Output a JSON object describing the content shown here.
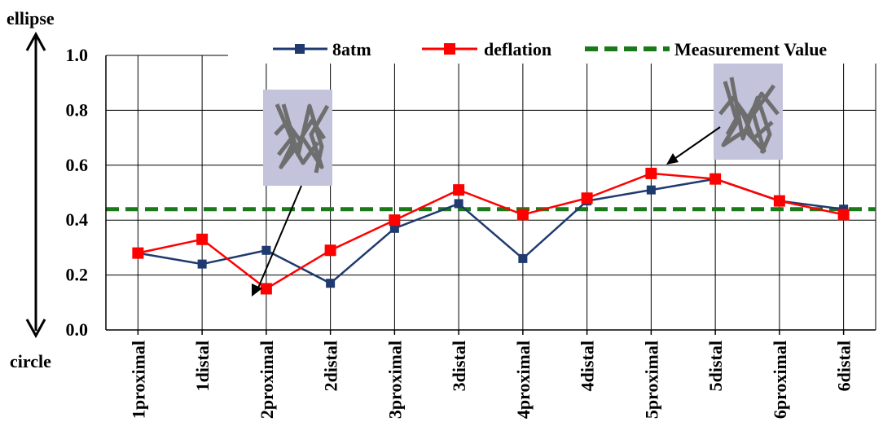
{
  "chart_data": {
    "type": "line",
    "categories": [
      "1proximal",
      "1distal",
      "2proximal",
      "2distal",
      "3proximal",
      "3distal",
      "4proximal",
      "4distal",
      "5proximal",
      "5distal",
      "6proximal",
      "6distal"
    ],
    "series": [
      {
        "name": "8atm",
        "values": [
          0.28,
          0.24,
          0.29,
          0.17,
          0.37,
          0.46,
          0.26,
          0.47,
          0.51,
          0.55,
          0.47,
          0.44
        ],
        "color": "#1f3a6e",
        "marker": "square"
      },
      {
        "name": "deflation",
        "values": [
          0.28,
          0.33,
          0.15,
          0.29,
          0.4,
          0.51,
          0.42,
          0.48,
          0.57,
          0.55,
          0.47,
          0.42
        ],
        "color": "#ff0000",
        "marker": "square"
      }
    ],
    "reference_line": {
      "name": "Measurement Value",
      "value": 0.44,
      "color": "#1a7a1a",
      "style": "dashed"
    },
    "ylim": [
      0,
      1.0
    ],
    "yticks": [
      "0.0",
      "0.2",
      "0.4",
      "0.6",
      "0.8",
      "1.0"
    ],
    "y_axis_top_label": "ellipse",
    "y_axis_bottom_label": "circle",
    "grid": true,
    "legend_position": "top-right",
    "annotations": [
      {
        "type": "stent-image-callout",
        "points_to": "2proximal"
      },
      {
        "type": "stent-image-callout",
        "points_to": "5proximal"
      }
    ]
  }
}
